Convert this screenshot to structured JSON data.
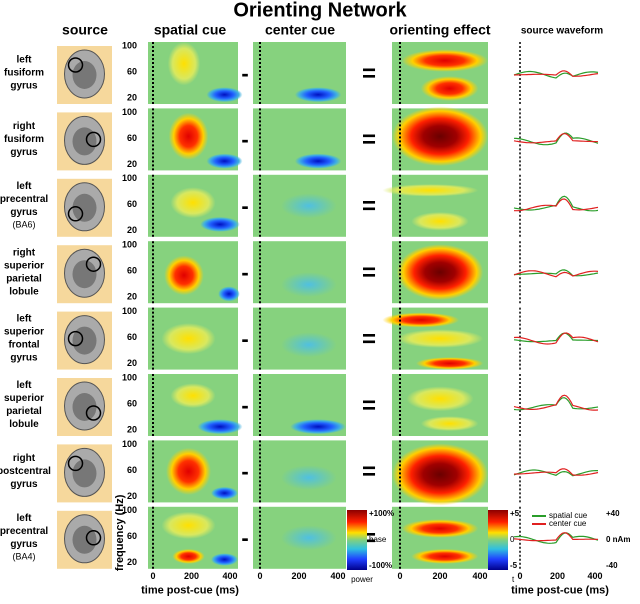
{
  "header": {
    "title": "Orienting Network"
  },
  "columns": [
    "source",
    "spatial cue",
    "center cue",
    "orienting effect",
    "source waveform"
  ],
  "rows": [
    {
      "label": [
        "left",
        "fusiform",
        "gyrus"
      ]
    },
    {
      "label": [
        "right",
        "fusiform",
        "gyrus"
      ]
    },
    {
      "label": [
        "left",
        "precentral",
        "gyrus"
      ],
      "note": "(BA6)"
    },
    {
      "label": [
        "right",
        "superior",
        "parietal",
        "lobule"
      ]
    },
    {
      "label": [
        "left",
        "superior",
        "frontal",
        "gyrus"
      ]
    },
    {
      "label": [
        "left",
        "superior",
        "parietal",
        "lobule"
      ]
    },
    {
      "label": [
        "right",
        "postcentral",
        "gyrus"
      ]
    },
    {
      "label": [
        "left",
        "precentral",
        "gyrus"
      ],
      "note": "(BA4)"
    }
  ],
  "operators": {
    "minus": "-",
    "equals": "="
  },
  "frequency_ticks": [
    "100",
    "60",
    "20"
  ],
  "frequency_label": "frequency (Hz)",
  "time_ticks": [
    "0",
    "200",
    "400"
  ],
  "time_label": "time post-cue (ms)",
  "power_colorbar": {
    "top": "+100%",
    "middle": "base",
    "bottom": "-100%",
    "label": "power"
  },
  "t_colorbar": {
    "top": "+5",
    "middle": "0",
    "bottom": "-5",
    "label": "t"
  },
  "waveform_legend": [
    "spatial cue",
    "center cue"
  ],
  "waveform_axis": {
    "top": "+40",
    "middle": "0 nAm",
    "bottom": "-40"
  }
}
